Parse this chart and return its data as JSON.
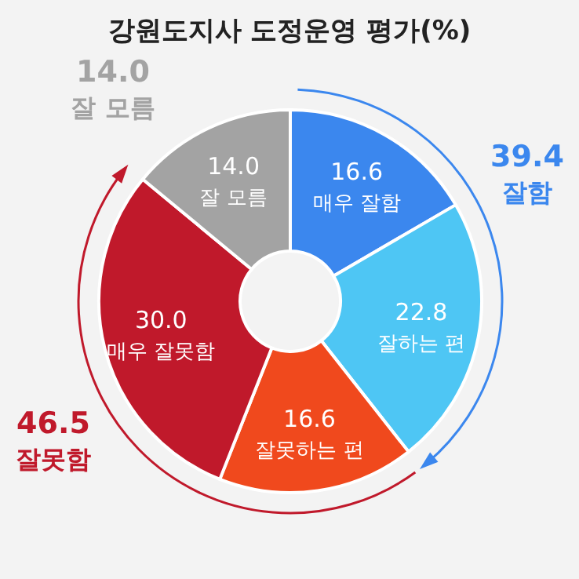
{
  "chart_data": {
    "type": "donut",
    "title": "강원도지사 도정운영 평가(%)",
    "categories": [
      "매우 잘함",
      "잘하는 편",
      "잘못하는 편",
      "매우 잘못함",
      "잘 모름"
    ],
    "values": [
      16.6,
      22.8,
      16.6,
      30.0,
      14.0
    ],
    "colors": [
      "#3b87ee",
      "#4ec6f4",
      "#f0491d",
      "#c0192b",
      "#a3a3a3"
    ],
    "value_labels": [
      "16.6",
      "22.8",
      "16.6",
      "30.0",
      "14.0"
    ],
    "annotations": [
      "39.4\n잘함",
      "46.5\n잘못함",
      "14.0\n잘 모름"
    ]
  }
}
